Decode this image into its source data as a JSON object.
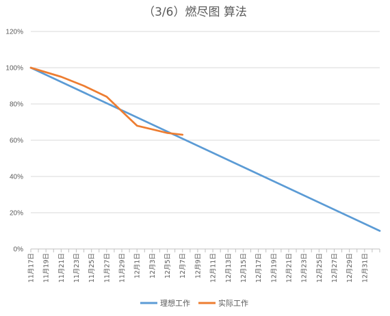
{
  "chart_data": {
    "type": "line",
    "title": "（3/6）燃尽图 算法",
    "xlabel": "",
    "ylabel": "",
    "ylim": [
      0,
      1.2
    ],
    "y_tick_labels": [
      "0%",
      "20%",
      "40%",
      "60%",
      "80%",
      "100%",
      "120%"
    ],
    "y_tick_values": [
      0,
      0.2,
      0.4,
      0.6,
      0.8,
      1.0,
      1.2
    ],
    "categories": [
      "11月17日",
      "11月19日",
      "11月21日",
      "11月23日",
      "11月25日",
      "11月27日",
      "11月29日",
      "12月1日",
      "12月3日",
      "12月5日",
      "12月7日",
      "12月9日",
      "12月11日",
      "12月13日",
      "12月15日",
      "12月17日",
      "12月19日",
      "12月21日",
      "12月23日",
      "12月25日",
      "12月27日",
      "12月29日",
      "12月31日"
    ],
    "legend_position": "bottom",
    "grid": true,
    "series": [
      {
        "name": "理想工作",
        "color": "#5b9bd5",
        "x": [
          "11月17日",
          "1月2日"
        ],
        "values": [
          1.0,
          0.1
        ]
      },
      {
        "name": "实际工作",
        "color": "#ed7d31",
        "x": [
          "11月17日",
          "11月21日",
          "11月24日",
          "11月27日",
          "11月29日",
          "12月1日",
          "12月3日",
          "12月5日",
          "12月7日"
        ],
        "values": [
          1.0,
          0.95,
          0.9,
          0.84,
          0.76,
          0.68,
          0.66,
          0.64,
          0.63
        ]
      }
    ]
  }
}
